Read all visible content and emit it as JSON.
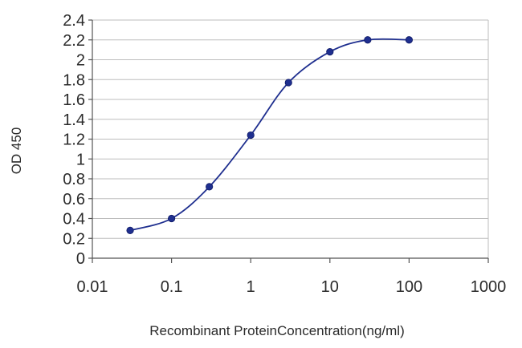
{
  "chart_data": {
    "type": "line",
    "title": "",
    "xlabel": "Recombinant ProteinConcentration(ng/ml)",
    "ylabel": "OD 450",
    "x_scale": "log",
    "xlim": [
      0.01,
      1000
    ],
    "ylim": [
      0,
      2.4
    ],
    "x_ticks": [
      "0.01",
      "0.1",
      "1",
      "10",
      "100",
      "1000"
    ],
    "y_ticks": [
      "0",
      "0.2",
      "0.4",
      "0.6",
      "0.8",
      "1",
      "1.2",
      "1.4",
      "1.6",
      "1.8",
      "2",
      "2.2",
      "2.4"
    ],
    "grid": "horizontal",
    "legend": "none",
    "series": [
      {
        "color": "#1f2f8f",
        "x": [
          0.03,
          0.1,
          0.3,
          1,
          3,
          10,
          30,
          100
        ],
        "y": [
          0.28,
          0.4,
          0.72,
          1.24,
          1.77,
          2.08,
          2.2,
          2.2
        ]
      }
    ]
  }
}
